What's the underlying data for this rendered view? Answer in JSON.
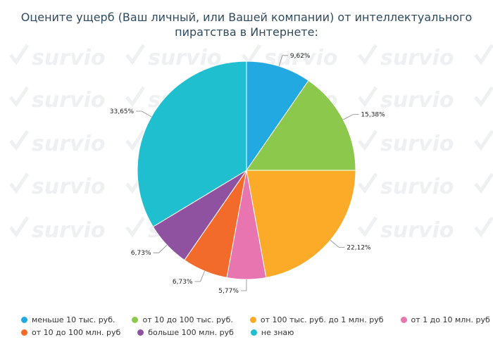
{
  "title_line1": "Оцените ущерб (Ваш личный, или Вашей компании) от интеллектуального",
  "title_line2": "пиратства в Интернете:",
  "watermark_text": "survio",
  "chart_data": {
    "type": "pie",
    "categories": [
      "меньше 10 тыс. руб.",
      "от 10 до 100 тыс. руб.",
      "от 100 тыс. руб. до 1 млн. руб",
      "от 1 до 10 млн. руб",
      "от 10 до 100 млн. руб",
      "больше 100 млн. руб",
      "не знаю"
    ],
    "values": [
      9.62,
      15.38,
      22.12,
      5.77,
      6.73,
      6.73,
      33.65
    ],
    "value_labels": [
      "9,62%",
      "15,38%",
      "22,12%",
      "5,77%",
      "6,73%",
      "6,73%",
      "33,65%"
    ],
    "colors": [
      "#23a9e1",
      "#8cc84b",
      "#fbab27",
      "#e874b0",
      "#f26b2b",
      "#8e52a1",
      "#1fbfcf"
    ],
    "legend_position": "bottom",
    "start_angle_deg": 0,
    "direction": "clockwise"
  }
}
